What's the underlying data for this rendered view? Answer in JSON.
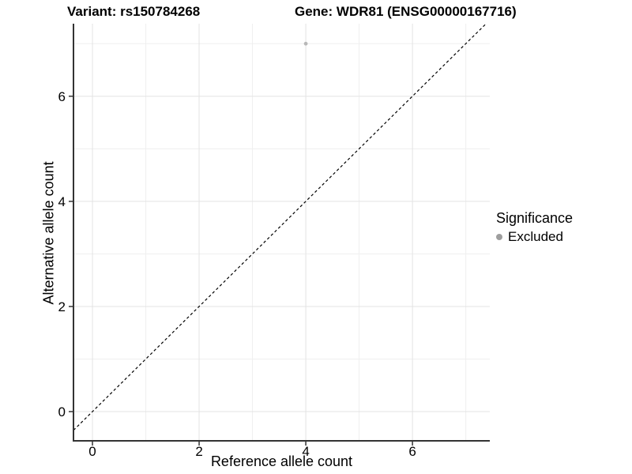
{
  "chart_data": {
    "type": "scatter",
    "title_left": "Variant: rs150784268",
    "title_right": "Gene: WDR81 (ENSG00000167716)",
    "xlabel": "Reference allele count",
    "ylabel": "Alternative allele count",
    "xlim": [
      -0.356,
      7.45
    ],
    "ylim": [
      -0.556,
      7.38
    ],
    "x_ticks": [
      0,
      2,
      4,
      6
    ],
    "y_ticks": [
      0,
      2,
      4,
      6
    ],
    "x_minor_ticks": [
      1,
      3,
      5,
      7
    ],
    "y_minor_ticks": [
      1,
      3,
      5,
      7
    ],
    "grid": "major+minor",
    "points": [
      {
        "x": 4,
        "y": 7,
        "significance": "Excluded"
      }
    ],
    "identity_line": {
      "slope": 1,
      "intercept": 0,
      "style": "dashed"
    },
    "legend": {
      "title": "Significance",
      "position": "right",
      "items": [
        {
          "label": "Excluded"
        }
      ]
    }
  },
  "colors": {
    "point": "#b8b8b8",
    "legend_dot": "#9e9e9e",
    "grid_major": "#e3e3e3",
    "grid_minor": "#efefef",
    "axis_line": "#333333",
    "dashed_line": "#000000",
    "text": "#000000"
  }
}
